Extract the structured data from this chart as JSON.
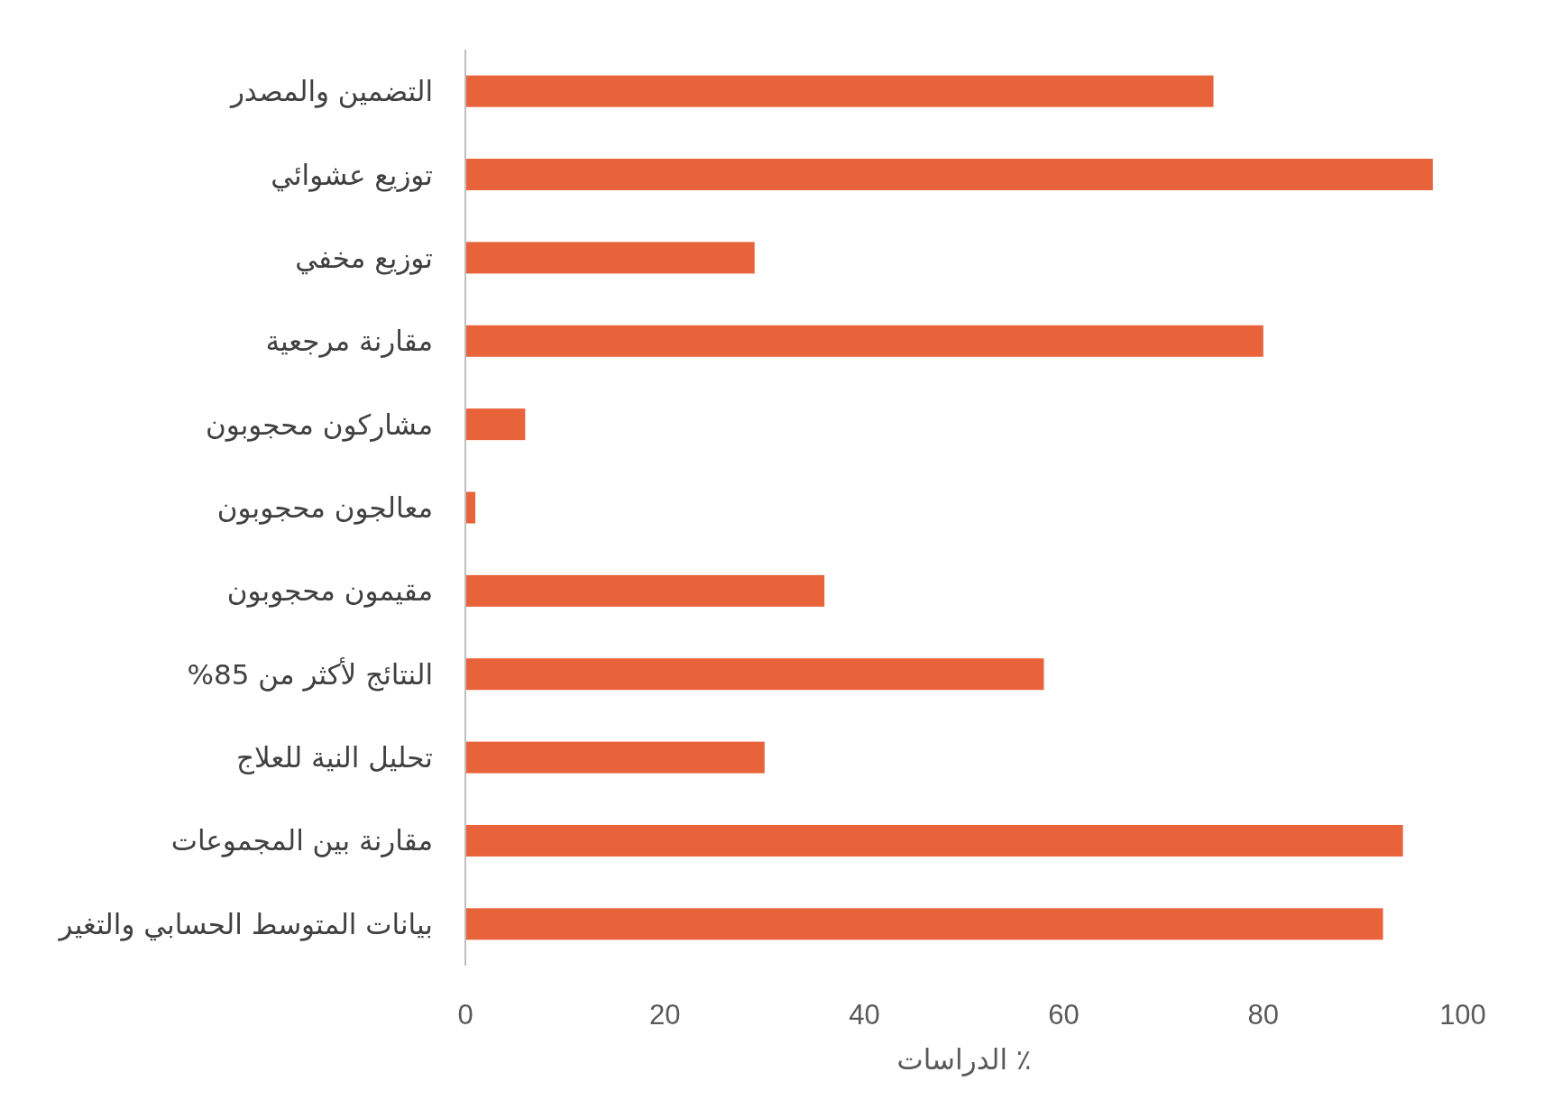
{
  "chart_data": {
    "type": "bar",
    "orientation": "horizontal",
    "xlabel": "٪ الدراسات",
    "categories": [
      "التضمين والمصدر",
      "توزيع عشوائي",
      "توزيع مخفي",
      "مقارنة مرجعية",
      "مشاركون محجوبون",
      "معالجون محجوبون",
      "مقيمون محجوبون",
      "النتائج لأكثر من 85%",
      "تحليل النية للعلاج",
      "مقارنة بين المجموعات",
      "بيانات المتوسط الحسابي والتغير"
    ],
    "values": [
      75,
      97,
      29,
      80,
      6,
      1,
      36,
      58,
      30,
      94,
      92
    ],
    "color": "#e8633a",
    "xlim": [
      0,
      100
    ],
    "xticks": [
      0,
      20,
      40,
      60,
      80,
      100
    ]
  }
}
